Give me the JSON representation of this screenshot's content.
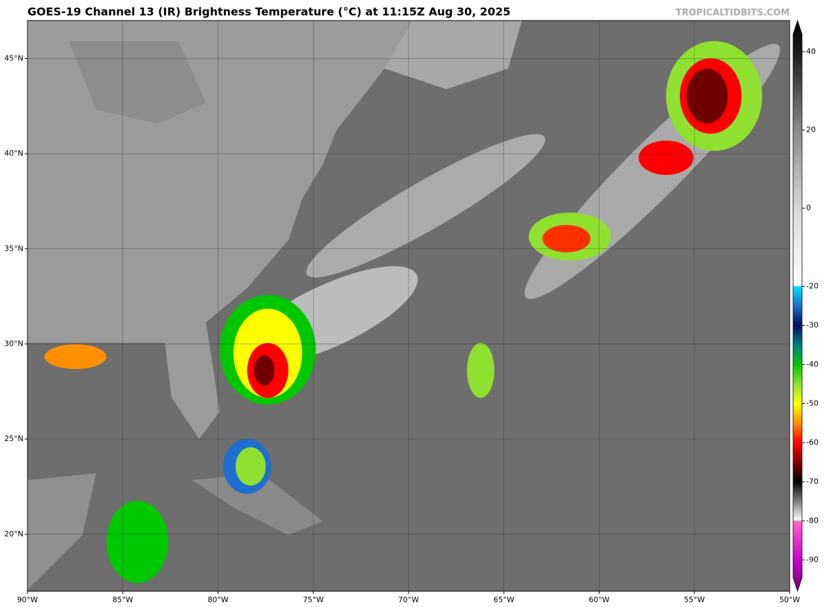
{
  "map": {
    "title": "GOES-19 Channel 13 (IR) Brightness Temperature (°C) at 11:15Z Aug 30, 2025",
    "watermark": "TROPICALTIDBITS.COM",
    "lon_range": [
      -90,
      -50
    ],
    "lat_range": [
      17,
      47
    ],
    "lon_ticks": [
      {
        "value": -90,
        "label": "90°W"
      },
      {
        "value": -85,
        "label": "85°W"
      },
      {
        "value": -80,
        "label": "80°W"
      },
      {
        "value": -75,
        "label": "75°W"
      },
      {
        "value": -70,
        "label": "70°W"
      },
      {
        "value": -65,
        "label": "65°W"
      },
      {
        "value": -60,
        "label": "60°W"
      },
      {
        "value": -55,
        "label": "55°W"
      },
      {
        "value": -50,
        "label": "50°W"
      }
    ],
    "lat_ticks": [
      {
        "value": 20,
        "label": "20°N"
      },
      {
        "value": 25,
        "label": "25°N"
      },
      {
        "value": 30,
        "label": "30°N"
      },
      {
        "value": 35,
        "label": "35°N"
      },
      {
        "value": 40,
        "label": "40°N"
      },
      {
        "value": 45,
        "label": "45°N"
      }
    ],
    "grid": true
  },
  "colorbar": {
    "lim": [
      -98,
      48
    ],
    "ticks": [
      40,
      20,
      0,
      -20,
      -30,
      -40,
      -50,
      -60,
      -70,
      -80,
      -90
    ],
    "stops": [
      {
        "value": 48,
        "color": "#000000"
      },
      {
        "value": 40,
        "color": "#1a1a1a"
      },
      {
        "value": 20,
        "color": "#8a8a8a"
      },
      {
        "value": 0,
        "color": "#d8d8d8"
      },
      {
        "value": -19.9,
        "color": "#ffffff"
      },
      {
        "value": -20,
        "color": "#00e5ff"
      },
      {
        "value": -25,
        "color": "#1e6fd0"
      },
      {
        "value": -30,
        "color": "#00105a"
      },
      {
        "value": -35,
        "color": "#008080"
      },
      {
        "value": -40,
        "color": "#00c800"
      },
      {
        "value": -45,
        "color": "#90e030"
      },
      {
        "value": -50,
        "color": "#ffff00"
      },
      {
        "value": -55,
        "color": "#ff9000"
      },
      {
        "value": -60,
        "color": "#ff0000"
      },
      {
        "value": -66,
        "color": "#700000"
      },
      {
        "value": -70,
        "color": "#000000"
      },
      {
        "value": -75,
        "color": "#808080"
      },
      {
        "value": -79.9,
        "color": "#ffffff"
      },
      {
        "value": -80,
        "color": "#ff66cc"
      },
      {
        "value": -90,
        "color": "#cc00cc"
      },
      {
        "value": -98,
        "color": "#700070"
      }
    ]
  }
}
